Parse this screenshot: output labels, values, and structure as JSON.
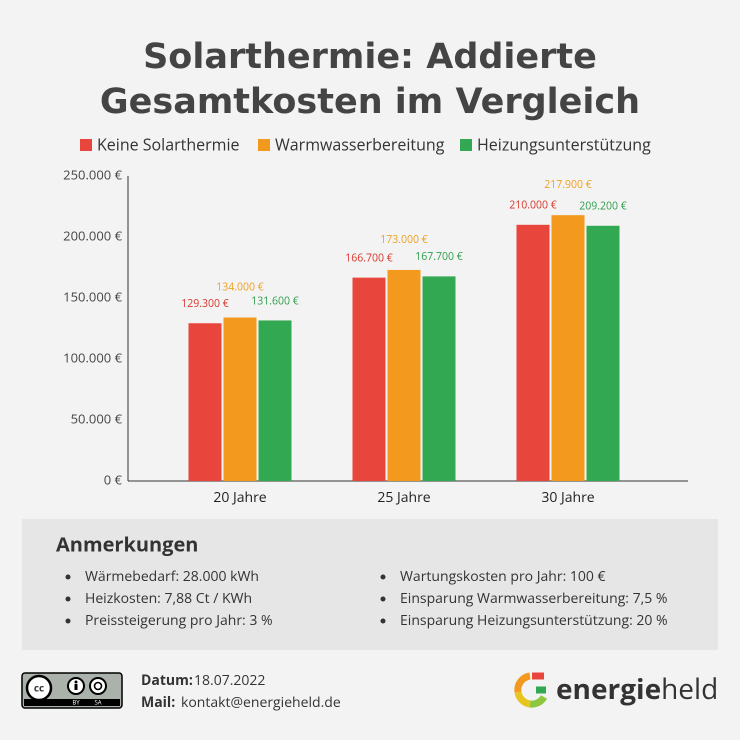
{
  "chart_data": {
    "type": "bar",
    "title": "Solarthermie: Addierte Gesamtkosten im Vergleich",
    "categories": [
      "20 Jahre",
      "25 Jahre",
      "30 Jahre"
    ],
    "series": [
      {
        "name": "Keine Solarthermie",
        "color": "#e8453c",
        "label_color": "#d9362c",
        "values": [
          129300,
          166700,
          210000
        ],
        "value_labels": [
          "129.300 €",
          "166.700 €",
          "210.000 €"
        ]
      },
      {
        "name": "Warmwasserbereitung",
        "color": "#f39a1e",
        "label_color": "#f0a020",
        "values": [
          134000,
          173000,
          217900
        ],
        "value_labels": [
          "134.000 €",
          "173.000 €",
          "217.900 €"
        ]
      },
      {
        "name": "Heizungsunterstützung",
        "color": "#33a852",
        "label_color": "#2e9e4c",
        "values": [
          131600,
          167700,
          209200
        ],
        "value_labels": [
          "131.600 €",
          "167.700 €",
          "209.200 €"
        ]
      }
    ],
    "ylim": [
      0,
      250000
    ],
    "yticks": [
      {
        "value": 0,
        "label": "0 €"
      },
      {
        "value": 50000,
        "label": "50.000 €"
      },
      {
        "value": 100000,
        "label": "100.000 €"
      },
      {
        "value": 150000,
        "label": "150.000 €"
      },
      {
        "value": 200000,
        "label": "200.000 €"
      },
      {
        "value": 250000,
        "label": "250.000 €"
      }
    ],
    "grid": false
  },
  "notes": {
    "title": "Anmerkungen",
    "left": [
      "Wärmebedarf: 28.000 kWh",
      "Heizkosten: 7,88 Ct / KWh",
      "Preissteigerung pro Jahr: 3 %"
    ],
    "right": [
      "Wartungskosten pro Jahr: 100 €",
      "Einsparung Warmwasserbereitung: 7,5 %",
      "Einsparung Heizungsunterstützung: 20 %"
    ]
  },
  "footer": {
    "license": {
      "icon": "cc",
      "by": "BY",
      "sa": "SA"
    },
    "date_label": "Datum:",
    "date": "18.07.2022",
    "mail_label": "Mail:",
    "mail": "kontakt@energieheld.de",
    "logo": {
      "bold": "energie",
      "regular": "held"
    }
  }
}
